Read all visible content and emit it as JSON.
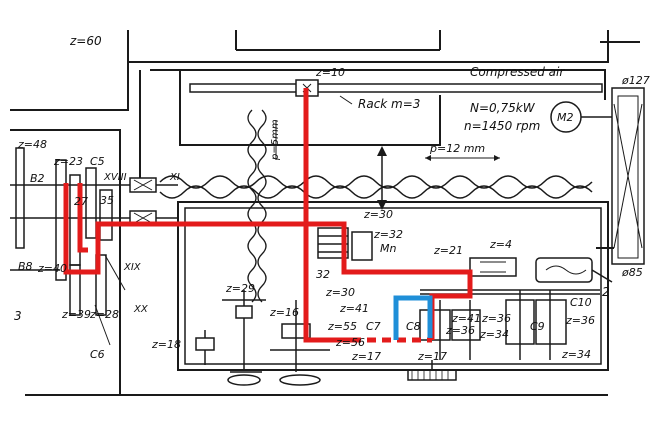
{
  "colors": {
    "ink": "#1a1a1a",
    "path_red": "#e31b1b",
    "path_blue": "#1f8fd8",
    "paper": "#ffffff"
  },
  "labels": {
    "z60": "z=60",
    "z10": "z=10",
    "compressed_air": "Compressed air",
    "rack": "Rack  m=3",
    "power": "N=0,75kW",
    "speed": "n=1450 rpm",
    "motor": "M2",
    "d127": "ø127",
    "d85": "ø85",
    "p5": "p=5mm",
    "p12": "p=12 mm",
    "z48": "z=48",
    "z23": "z=23",
    "c5": "C5",
    "b2": "B2",
    "xviii": "XVIII",
    "xi": "XI",
    "z35": "35",
    "z27": "27",
    "z40": "z=40",
    "b8": "B8",
    "xix": "XIX",
    "xx": "XX",
    "z39": "z=39",
    "z28": "z=28",
    "c6": "C6",
    "z30a": "z=30",
    "z32": "z=32",
    "mn": "Mn",
    "z21": "z=21",
    "z4": "z=4",
    "m32": "32",
    "z30b": "z=30",
    "z41a": "z=41",
    "z29": "z=29",
    "z16": "z=16",
    "z18": "z=18",
    "z55": "z=55",
    "c7": "C7",
    "c8": "C8",
    "z41b": "z=41",
    "z36a": "z=36",
    "z36b": "z=36",
    "z34a": "z=34",
    "c9": "C9",
    "c10": "C10",
    "z36c": "z=36",
    "z17a": "z=17",
    "z17b": "z=17",
    "z34b": "z=34",
    "z56": "z=56",
    "n2": "2",
    "n3": "3"
  }
}
